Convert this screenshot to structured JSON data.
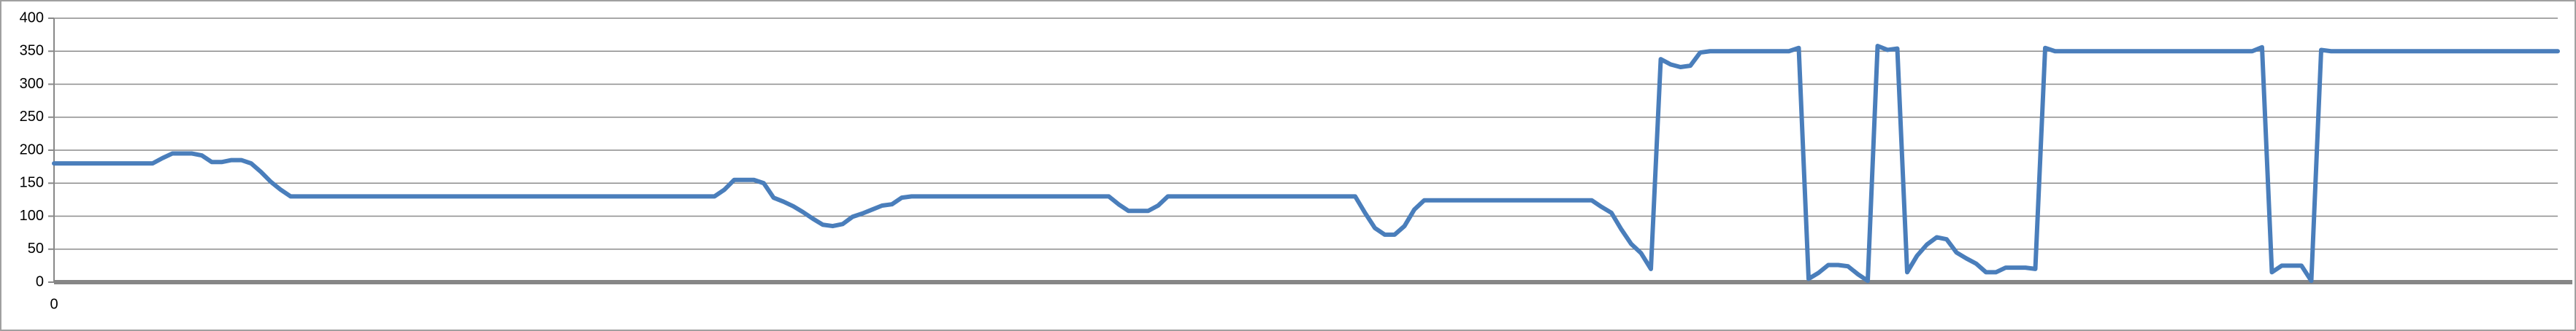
{
  "chart_data": {
    "type": "line",
    "color": "#4a7ebb",
    "grid": true,
    "ylim": [
      0,
      400
    ],
    "yticks": [
      0,
      50,
      100,
      150,
      200,
      250,
      300,
      350,
      400
    ],
    "categories": [
      "0",
      null,
      null,
      null,
      null,
      null,
      null,
      null,
      null,
      null,
      null,
      null,
      null,
      null,
      null,
      null,
      null,
      null,
      null,
      null,
      null,
      null,
      null,
      null,
      null,
      null,
      null,
      null,
      null,
      null,
      null,
      null,
      null,
      null,
      null,
      null,
      null,
      null,
      null,
      null,
      null,
      null,
      null,
      null,
      null,
      null,
      null,
      null,
      null,
      null,
      null,
      null,
      null,
      null,
      null,
      null,
      null,
      null,
      null,
      null,
      null,
      null,
      null,
      null,
      null,
      null,
      null,
      null,
      null,
      null,
      null,
      null,
      null,
      null,
      null,
      null,
      null,
      null,
      null,
      null,
      null,
      null,
      null,
      null,
      null,
      null,
      null,
      null,
      null,
      null,
      null,
      null,
      null,
      null,
      null,
      null,
      null,
      null,
      null,
      null,
      null,
      null,
      null,
      null,
      null,
      null,
      null,
      null,
      null,
      null,
      null,
      null,
      null,
      null,
      null,
      null,
      null,
      null,
      null,
      null,
      null,
      null,
      null,
      null,
      null,
      null,
      null,
      null,
      null,
      null,
      null,
      null,
      null,
      null,
      null,
      null,
      null,
      null,
      null,
      null,
      null,
      null,
      null,
      null,
      null,
      null,
      null,
      null,
      null,
      null,
      null,
      null,
      null,
      null,
      null,
      null,
      null,
      null,
      null,
      null,
      null,
      null,
      null,
      null,
      null,
      null,
      null,
      null,
      null,
      null,
      null,
      null,
      null,
      null,
      null,
      null,
      null,
      null,
      null,
      null,
      null,
      null,
      null,
      null,
      null,
      null,
      null,
      null,
      null,
      null,
      null,
      null,
      null,
      null,
      null,
      null,
      null,
      null,
      null,
      null,
      null,
      null,
      null,
      null,
      null,
      null,
      null,
      null,
      null,
      null,
      null,
      null,
      null,
      null,
      null,
      null,
      null,
      null,
      null,
      null,
      null,
      null,
      null,
      null,
      null,
      null,
      null,
      null,
      null,
      null,
      null,
      null,
      null,
      null,
      null,
      null,
      null,
      null,
      null,
      null,
      null,
      null,
      null,
      null,
      null,
      null,
      null,
      null,
      null,
      null,
      null,
      null,
      null,
      null,
      null
    ],
    "values": [
      180,
      180,
      180,
      180,
      180,
      180,
      180,
      180,
      180,
      180,
      180,
      188,
      195,
      195,
      195,
      192,
      182,
      182,
      185,
      185,
      180,
      167,
      152,
      140,
      130,
      130,
      130,
      130,
      130,
      130,
      130,
      130,
      130,
      130,
      130,
      130,
      130,
      130,
      130,
      130,
      130,
      130,
      130,
      130,
      130,
      130,
      130,
      130,
      130,
      130,
      130,
      130,
      130,
      130,
      130,
      130,
      130,
      130,
      130,
      130,
      130,
      130,
      130,
      130,
      130,
      130,
      130,
      130,
      140,
      155,
      155,
      155,
      150,
      128,
      122,
      115,
      106,
      96,
      87,
      85,
      88,
      99,
      104,
      110,
      116,
      118,
      128,
      130,
      130,
      130,
      130,
      130,
      130,
      130,
      130,
      130,
      130,
      130,
      130,
      130,
      130,
      130,
      130,
      130,
      130,
      130,
      130,
      130,
      118,
      108,
      108,
      108,
      116,
      130,
      130,
      130,
      130,
      130,
      130,
      130,
      130,
      130,
      130,
      130,
      130,
      130,
      130,
      130,
      130,
      130,
      130,
      130,
      130,
      105,
      82,
      72,
      72,
      85,
      110,
      124,
      124,
      124,
      124,
      124,
      124,
      124,
      124,
      124,
      124,
      124,
      124,
      124,
      124,
      124,
      124,
      124,
      124,
      114,
      105,
      80,
      58,
      44,
      20,
      338,
      330,
      326,
      328,
      348,
      350,
      350,
      350,
      350,
      350,
      350,
      350,
      350,
      350,
      355,
      5,
      14,
      26,
      26,
      24,
      12,
      2,
      358,
      352,
      354,
      15,
      40,
      57,
      68,
      65,
      45,
      36,
      28,
      15,
      15,
      22,
      22,
      22,
      20,
      355,
      350,
      350,
      350,
      350,
      350,
      350,
      350,
      350,
      350,
      350,
      350,
      350,
      350,
      350,
      350,
      350,
      350,
      350,
      350,
      350,
      350,
      356,
      15,
      25,
      25,
      25,
      2,
      352,
      350,
      350,
      350,
      350,
      350,
      350,
      350,
      350,
      350,
      350,
      350,
      350,
      350,
      350,
      350,
      350,
      350,
      350,
      350,
      350,
      350,
      350,
      350,
      350
    ]
  }
}
